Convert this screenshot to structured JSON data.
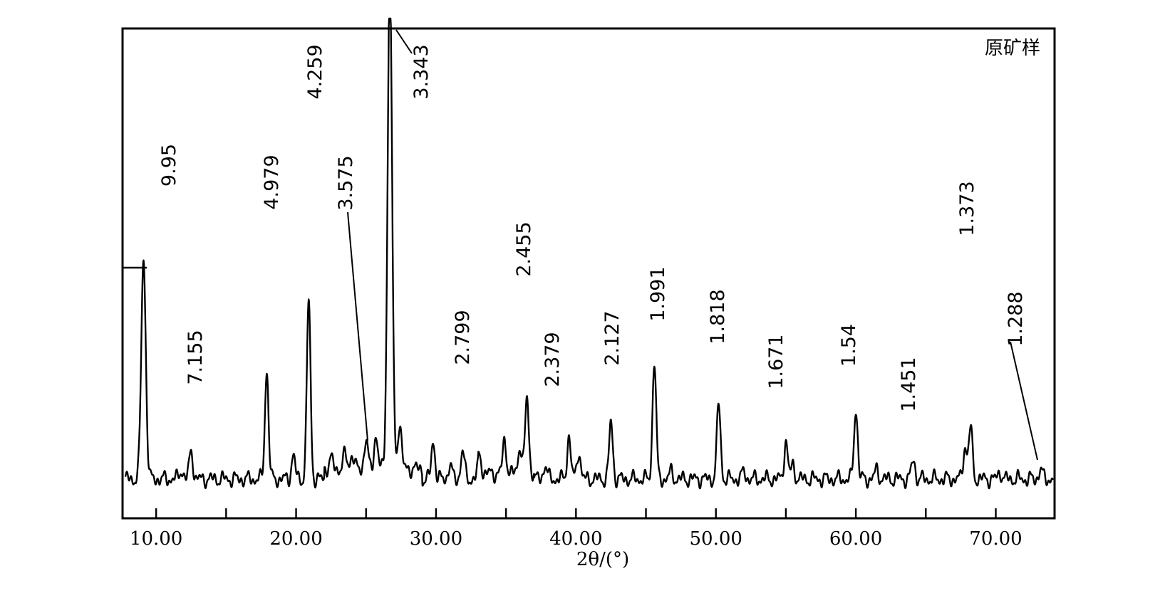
{
  "chart_data": {
    "type": "line",
    "title": "",
    "sample_label": "原矿样",
    "xlabel": "2θ/(°)",
    "ylabel": "",
    "xlim": [
      7.6,
      74.2
    ],
    "ylim": [
      0,
      1.0
    ],
    "grid": false,
    "x_ticks": [
      10,
      15,
      20,
      25,
      30,
      35,
      40,
      45,
      50,
      55,
      60,
      65,
      70
    ],
    "x_tick_labels": [
      "10.00",
      "20.00",
      "30.00",
      "40.00",
      "50.00",
      "60.00",
      "70.00"
    ],
    "x_tick_label_values": [
      10,
      20,
      30,
      40,
      50,
      60,
      70
    ],
    "peaks": [
      {
        "two_theta": 9.1,
        "height": 0.47,
        "label": "9.95"
      },
      {
        "two_theta": 12.5,
        "height": 0.06,
        "label": "7.155"
      },
      {
        "two_theta": 17.9,
        "height": 0.23,
        "label": "4.979"
      },
      {
        "two_theta": 20.9,
        "height": 0.38,
        "label": "4.259"
      },
      {
        "two_theta": 25.0,
        "height": 0.06,
        "label": "3.575"
      },
      {
        "two_theta": 26.7,
        "height": 1.05,
        "label": "3.343"
      },
      {
        "two_theta": 31.9,
        "height": 0.06,
        "label": "2.799"
      },
      {
        "two_theta": 36.5,
        "height": 0.16,
        "label": "2.455"
      },
      {
        "two_theta": 37.8,
        "height": 0.03,
        "label": "2.379"
      },
      {
        "two_theta": 42.5,
        "height": 0.12,
        "label": "2.127"
      },
      {
        "two_theta": 45.6,
        "height": 0.25,
        "label": "1.991"
      },
      {
        "two_theta": 50.2,
        "height": 0.16,
        "label": "1.818"
      },
      {
        "two_theta": 55.0,
        "height": 0.08,
        "label": "1.671"
      },
      {
        "two_theta": 60.0,
        "height": 0.15,
        "label": "1.54"
      },
      {
        "two_theta": 64.1,
        "height": 0.04,
        "label": "1.451"
      },
      {
        "two_theta": 68.2,
        "height": 0.11,
        "label": "1.373"
      },
      {
        "two_theta": 73.2,
        "height": 0.02,
        "label": "1.288"
      }
    ],
    "minor_peaks": [
      {
        "two_theta": 11.8,
        "height": 0.02
      },
      {
        "two_theta": 19.8,
        "height": 0.05
      },
      {
        "two_theta": 22.5,
        "height": 0.02
      },
      {
        "two_theta": 23.5,
        "height": 0.03
      },
      {
        "two_theta": 24.0,
        "height": 0.03
      },
      {
        "two_theta": 25.7,
        "height": 0.07
      },
      {
        "two_theta": 27.4,
        "height": 0.1
      },
      {
        "two_theta": 29.8,
        "height": 0.08
      },
      {
        "two_theta": 31.0,
        "height": 0.03
      },
      {
        "two_theta": 33.1,
        "height": 0.04
      },
      {
        "two_theta": 34.9,
        "height": 0.07
      },
      {
        "two_theta": 36.0,
        "height": 0.06
      },
      {
        "two_theta": 39.5,
        "height": 0.09
      },
      {
        "two_theta": 40.2,
        "height": 0.06
      },
      {
        "two_theta": 46.8,
        "height": 0.015
      },
      {
        "two_theta": 52.0,
        "height": 0.015
      },
      {
        "two_theta": 55.5,
        "height": 0.03
      },
      {
        "two_theta": 61.5,
        "height": 0.02
      },
      {
        "two_theta": 67.8,
        "height": 0.07
      },
      {
        "two_theta": 70.3,
        "height": 0.015
      }
    ]
  }
}
